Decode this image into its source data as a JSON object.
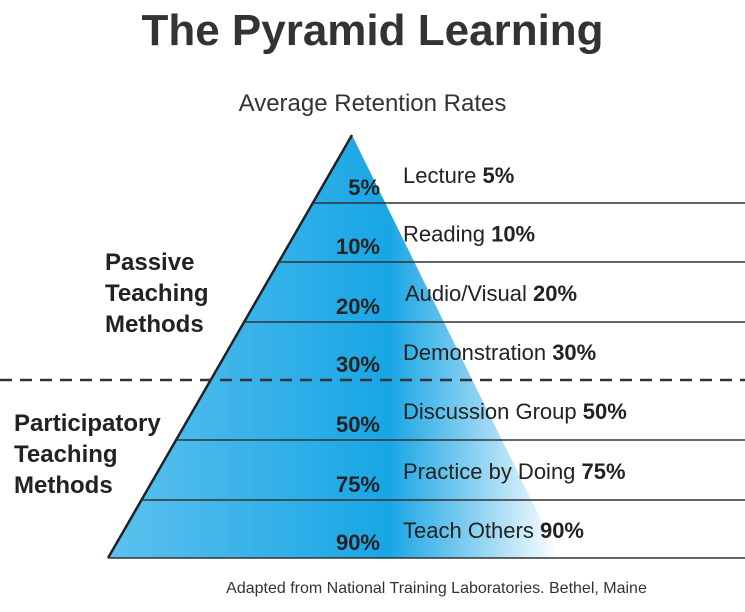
{
  "title": "The Pyramid Learning",
  "subtitle": "Average Retention Rates",
  "groups": {
    "passive": [
      "Passive",
      "Teaching",
      "Methods"
    ],
    "participatory": [
      "Participatory",
      "Teaching",
      "Methods"
    ]
  },
  "levels": [
    {
      "percent": "5%",
      "name": "Lecture",
      "value": "5%"
    },
    {
      "percent": "10%",
      "name": "Reading",
      "value": "10%"
    },
    {
      "percent": "20%",
      "name": "Audio/Visual",
      "value": "20%"
    },
    {
      "percent": "30%",
      "name": "Demonstration",
      "value": "30%"
    },
    {
      "percent": "50%",
      "name": "Discussion Group",
      "value": "50%"
    },
    {
      "percent": "75%",
      "name": "Practice by Doing",
      "value": "75%"
    },
    {
      "percent": "90%",
      "name": "Teach Others",
      "value": "90%"
    }
  ],
  "source": "Adapted from National Training Laboratories. Bethel, Maine",
  "colors": {
    "pyramid_dark": "#1aa8e6",
    "pyramid_light": "#ffffff",
    "lines": "#333333"
  }
}
